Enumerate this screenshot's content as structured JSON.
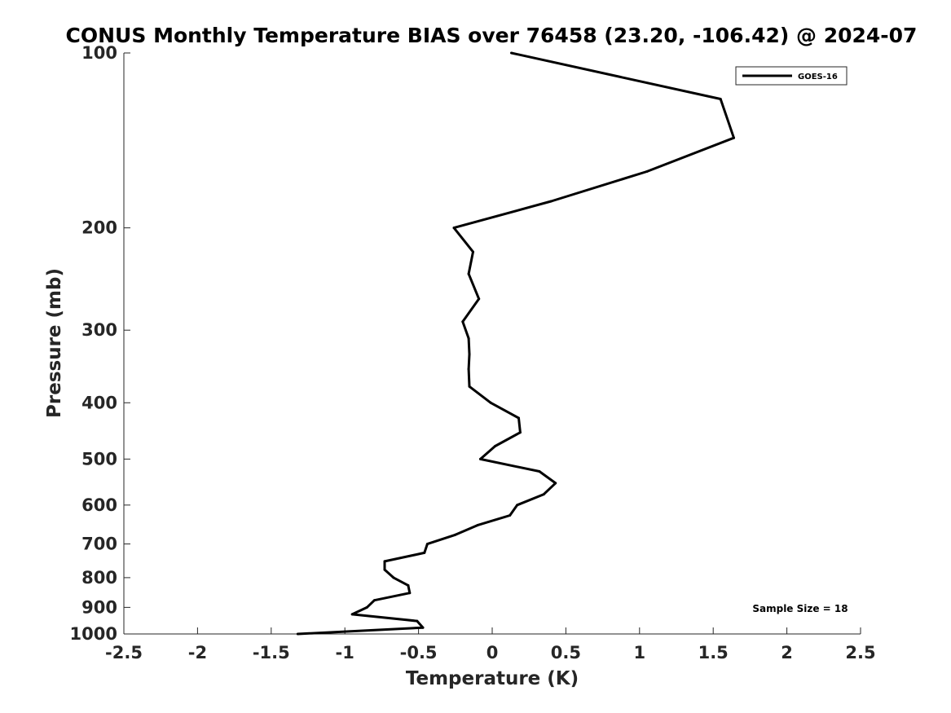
{
  "chart_data": {
    "type": "line",
    "title": "CONUS Monthly Temperature BIAS over 76458 (23.20, -106.42) @ 2024-07",
    "xlabel": "Temperature (K)",
    "ylabel": "Pressure (mb)",
    "xlim": [
      -2.5,
      2.5
    ],
    "ylim": [
      100,
      1000
    ],
    "y_scale": "log",
    "y_reversed": true,
    "xticks": [
      "-2.5",
      "-2",
      "-1.5",
      "-1",
      "-0.5",
      "0",
      "0.5",
      "1",
      "1.5",
      "2",
      "2.5"
    ],
    "yticks": [
      "100",
      "200",
      "300",
      "400",
      "500",
      "600",
      "700",
      "800",
      "900",
      "1000"
    ],
    "grid": false,
    "legend_position": "top-right",
    "series": [
      {
        "name": "GOES-16",
        "color": "#000000",
        "x": [
          0.13,
          1.55,
          1.64,
          1.05,
          0.4,
          -0.26,
          -0.13,
          -0.16,
          -0.09,
          -0.2,
          -0.16,
          -0.155,
          -0.16,
          -0.155,
          -0.01,
          0.18,
          0.19,
          0.02,
          -0.08,
          0.32,
          0.43,
          0.35,
          0.17,
          0.12,
          -0.1,
          -0.25,
          -0.44,
          -0.46,
          -0.73,
          -0.73,
          -0.67,
          -0.57,
          -0.56,
          -0.8,
          -0.85,
          -0.95,
          -0.51,
          -0.47,
          -1.32
        ],
        "y": [
          100,
          120,
          140,
          160,
          180,
          200,
          220,
          240,
          265,
          290,
          310,
          330,
          350,
          375,
          400,
          425,
          450,
          475,
          500,
          525,
          550,
          575,
          600,
          625,
          650,
          675,
          700,
          725,
          750,
          775,
          800,
          825,
          850,
          875,
          900,
          925,
          950,
          975,
          1000
        ]
      }
    ],
    "annotations": [
      "Sample Size = 18"
    ]
  }
}
